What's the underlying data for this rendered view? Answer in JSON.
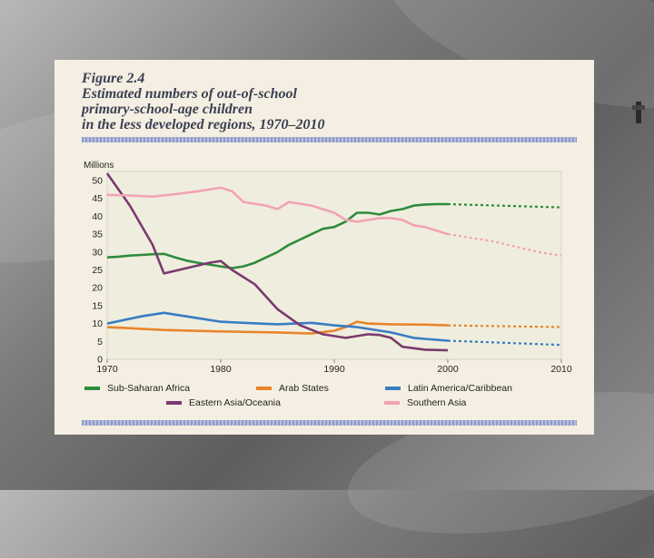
{
  "slide": {
    "title_lines": [
      "Figure 2.4",
      "Estimated numbers of out-of-school",
      "primary-school-age children",
      "in the less developed regions, 1970–2010"
    ]
  },
  "chart_data": {
    "type": "line",
    "y_unit_label": "Millions",
    "xlim": [
      1970,
      2010
    ],
    "ylim": [
      0,
      50
    ],
    "x_ticks": [
      1970,
      1980,
      1990,
      2000,
      2010
    ],
    "y_ticks": [
      0,
      5,
      10,
      15,
      20,
      25,
      30,
      35,
      40,
      45,
      50
    ],
    "projection_start": 2000,
    "grid": false,
    "legend_position": "bottom",
    "series": [
      {
        "name": "Sub-Saharan Africa",
        "color": "#2e8b3e",
        "x": [
          1970,
          1971,
          1972,
          1973,
          1974,
          1975,
          1976,
          1977,
          1978,
          1979,
          1980,
          1981,
          1982,
          1983,
          1984,
          1985,
          1986,
          1987,
          1988,
          1989,
          1990,
          1991,
          1992,
          1993,
          1994,
          1995,
          1996,
          1997,
          1998,
          1999,
          2000,
          2010
        ],
        "y": [
          28.5,
          28.7,
          29,
          29.2,
          29.4,
          29.5,
          28.5,
          27.6,
          27,
          26.5,
          26,
          25.5,
          26,
          27,
          28.5,
          30,
          32,
          33.5,
          35,
          36.5,
          37,
          38.5,
          41,
          41,
          40.5,
          41.5,
          42,
          43,
          43.3,
          43.4,
          43.4,
          42.5
        ]
      },
      {
        "name": "Arab States",
        "color": "#e8852a",
        "x": [
          1970,
          1975,
          1980,
          1985,
          1988,
          1990,
          1991,
          1992,
          1993,
          1995,
          1998,
          2000,
          2010
        ],
        "y": [
          9,
          8.2,
          7.8,
          7.5,
          7.2,
          8,
          9,
          10.5,
          10,
          9.8,
          9.7,
          9.5,
          9
        ]
      },
      {
        "name": "Latin America/Caribbean",
        "color": "#3a7cc4",
        "x": [
          1970,
          1973,
          1975,
          1978,
          1980,
          1982,
          1985,
          1988,
          1990,
          1992,
          1995,
          1997,
          1998,
          2000,
          2010
        ],
        "y": [
          10,
          12,
          13,
          11.5,
          10.5,
          10.2,
          9.8,
          10.2,
          9.5,
          9,
          7.5,
          6,
          5.7,
          5.2,
          4
        ]
      },
      {
        "name": "Eastern Asia/Oceania",
        "color": "#7a3a6e",
        "x": [
          1970,
          1972,
          1974,
          1975,
          1977,
          1979,
          1980,
          1981,
          1983,
          1985,
          1987,
          1989,
          1991,
          1992,
          1993,
          1994,
          1995,
          1996,
          1998,
          2000
        ],
        "y": [
          52,
          43,
          32,
          24,
          25.5,
          27,
          27.5,
          25,
          21,
          14,
          9.5,
          7,
          6,
          6.5,
          7,
          6.8,
          6,
          3.5,
          2.7,
          2.5
        ]
      },
      {
        "name": "Southern Asia",
        "color": "#f2a3b3",
        "x": [
          1970,
          1972,
          1974,
          1976,
          1978,
          1980,
          1981,
          1982,
          1984,
          1985,
          1986,
          1988,
          1990,
          1991,
          1992,
          1994,
          1995,
          1996,
          1997,
          1998,
          2000,
          2004,
          2008,
          2010
        ],
        "y": [
          46,
          45.8,
          45.5,
          46.2,
          47,
          48,
          47,
          44,
          43,
          42,
          44,
          43,
          41,
          39,
          38.5,
          39.5,
          39.5,
          39,
          37.5,
          37,
          35,
          33,
          30,
          29
        ]
      }
    ]
  }
}
